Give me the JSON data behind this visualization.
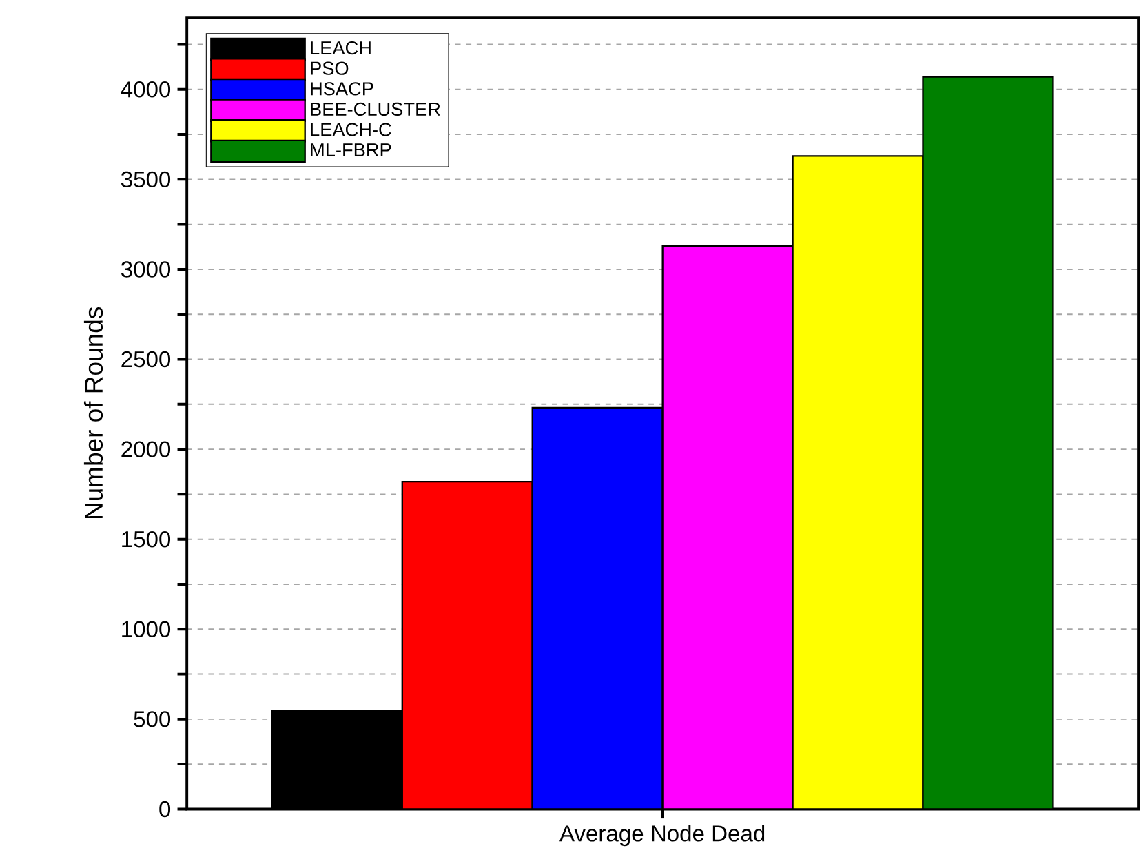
{
  "chart_data": {
    "type": "bar",
    "ylabel": "Number of Rounds",
    "categories": [
      "Average Node Dead"
    ],
    "series": [
      {
        "name": "LEACH",
        "color": "#000000",
        "values": [
          545
        ]
      },
      {
        "name": "PSO",
        "color": "#ff0000",
        "values": [
          1820
        ]
      },
      {
        "name": "HSACP",
        "color": "#0000ff",
        "values": [
          2230
        ]
      },
      {
        "name": "BEE-CLUSTER",
        "color": "#ff00ff",
        "values": [
          3130
        ]
      },
      {
        "name": "LEACH-C",
        "color": "#ffff00",
        "values": [
          3630
        ]
      },
      {
        "name": "ML-FBRP",
        "color": "#008000",
        "values": [
          4070
        ]
      }
    ],
    "ylim": [
      0,
      4400
    ],
    "yticks": [
      0,
      {
        "value": 250,
        "label": null
      },
      500,
      {
        "value": 750,
        "label": null
      },
      1000,
      {
        "value": 1250,
        "label": null
      },
      1500,
      {
        "value": 1750,
        "label": null
      },
      2000,
      {
        "value": 2250,
        "label": null
      },
      2500,
      {
        "value": 2750,
        "label": null
      },
      3000,
      {
        "value": 3250,
        "label": null
      },
      3500,
      {
        "value": 3750,
        "label": null
      },
      4000,
      {
        "value": 4250,
        "label": null
      }
    ],
    "grid": "y",
    "legend": "top left"
  }
}
